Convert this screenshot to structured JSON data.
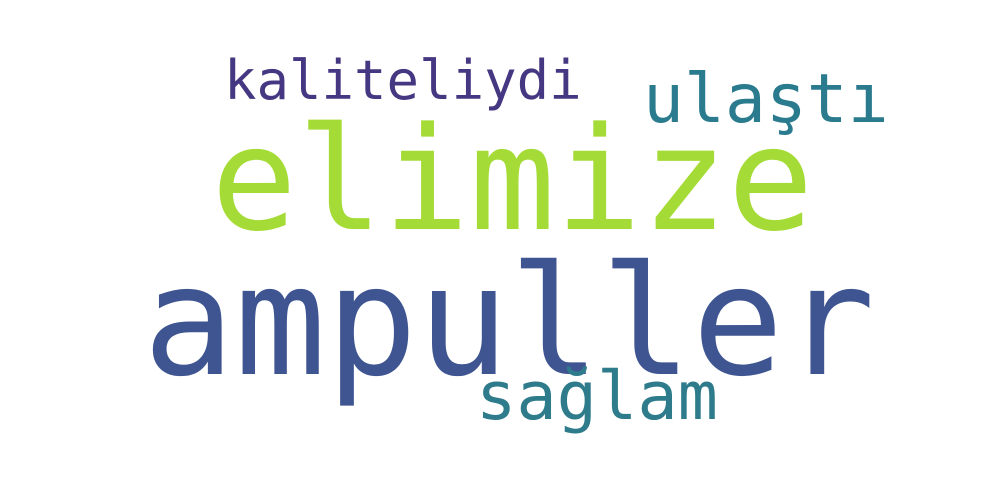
{
  "word_cloud": {
    "words": [
      {
        "text": "elimize",
        "color": "#a5db36"
      },
      {
        "text": "ampuller",
        "color": "#3e5591"
      },
      {
        "text": "kaliteliydi",
        "color": "#453781"
      },
      {
        "text": "ulaştı",
        "color": "#2b7b8e"
      },
      {
        "text": "sağlam",
        "color": "#2e7b8b"
      }
    ]
  }
}
